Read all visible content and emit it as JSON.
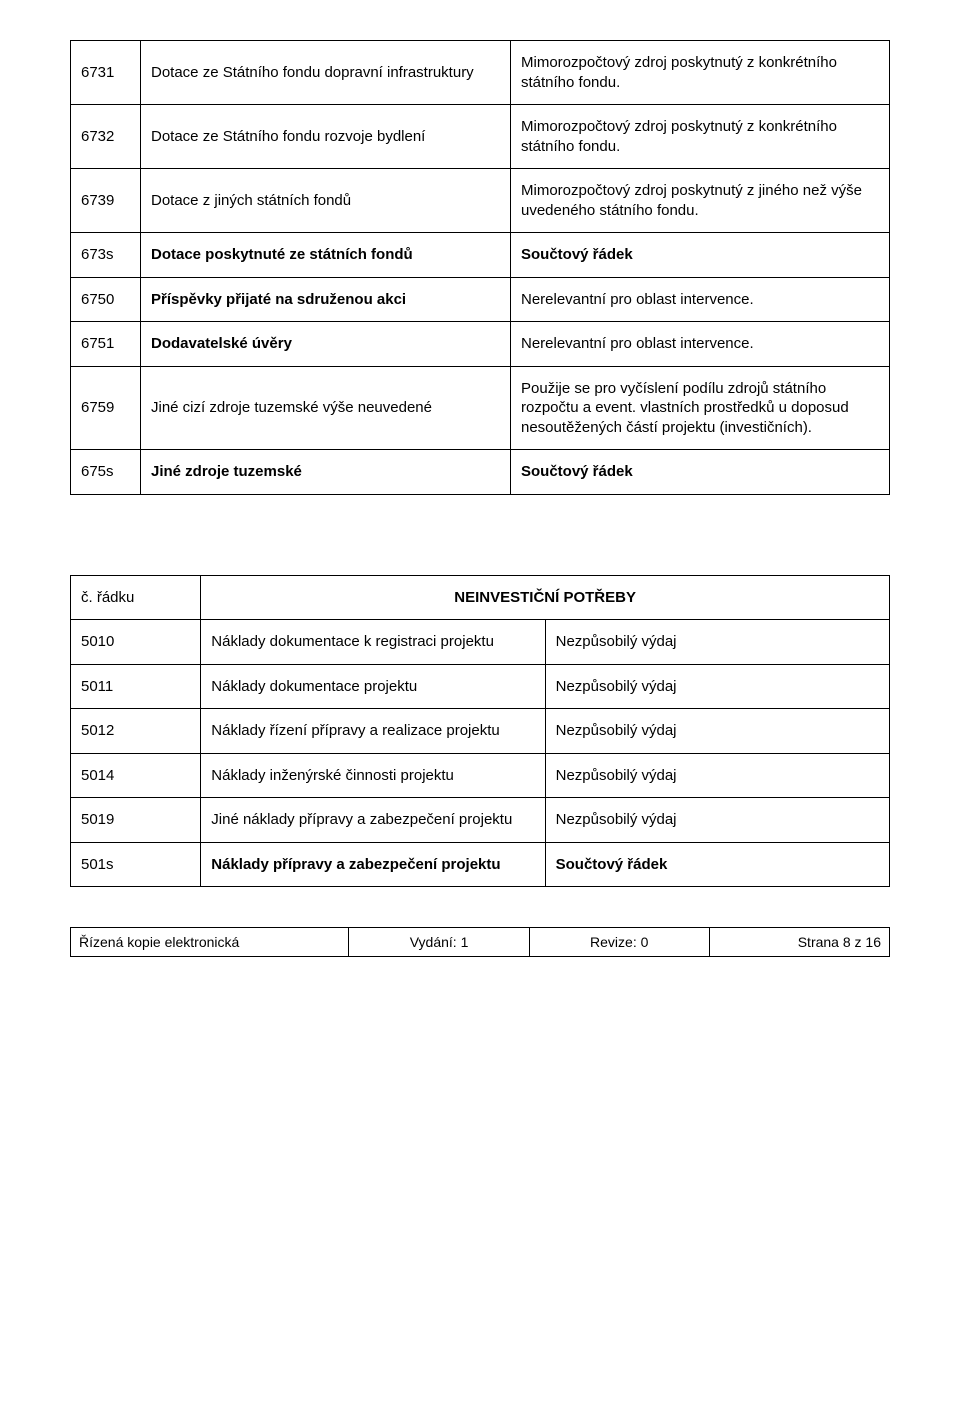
{
  "table1": {
    "rows": [
      {
        "code": "6731",
        "desc": "Dotace ze Státního fondu dopravní infrastruktury",
        "note": "Mimorozpočtový zdroj poskytnutý z konkrétního státního fondu.",
        "bold": false
      },
      {
        "code": "6732",
        "desc": "Dotace ze Státního fondu rozvoje bydlení",
        "note": "Mimorozpočtový zdroj poskytnutý z konkrétního státního fondu.",
        "bold": false
      },
      {
        "code": "6739",
        "desc": "Dotace z jiných státních fondů",
        "note": "Mimorozpočtový zdroj poskytnutý z jiného než výše uvedeného státního fondu.",
        "bold": false
      },
      {
        "code": "673s",
        "desc": "Dotace poskytnuté ze státních fondů",
        "note": "Součtový řádek",
        "bold": true
      },
      {
        "code": "6750",
        "desc": "Příspěvky přijaté na sdruženou akci",
        "note": "Nerelevantní pro oblast intervence.",
        "bold": true,
        "noteBold": false
      },
      {
        "code": "6751",
        "desc": "Dodavatelské úvěry",
        "note": "Nerelevantní pro oblast intervence.",
        "bold": true,
        "noteBold": false
      },
      {
        "code": "6759",
        "desc": "Jiné cizí zdroje tuzemské výše neuvedené",
        "note": "Použije se pro vyčíslení podílu zdrojů státního rozpočtu a event. vlastních prostředků u doposud nesoutěžených částí projektu (investičních).",
        "bold": false
      },
      {
        "code": "675s",
        "desc": "Jiné zdroje tuzemské",
        "note": "Součtový řádek",
        "bold": true
      }
    ]
  },
  "table2": {
    "header": {
      "code": "č. řádku",
      "title": "NEINVESTIČNÍ POTŘEBY"
    },
    "rows": [
      {
        "code": "5010",
        "desc": "Náklady dokumentace k registraci projektu",
        "note": "Nezpůsobilý výdaj",
        "tall": false
      },
      {
        "code": "5011",
        "desc": "Náklady dokumentace projektu",
        "note": "Nezpůsobilý výdaj",
        "tall": true
      },
      {
        "code": "5012",
        "desc": "Náklady řízení přípravy a realizace projektu",
        "note": "Nezpůsobilý výdaj",
        "tall": true
      },
      {
        "code": "5014",
        "desc": "Náklady inženýrské činnosti projektu",
        "note": "Nezpůsobilý výdaj",
        "tall": true
      },
      {
        "code": "5019",
        "desc": "Jiné náklady přípravy a zabezpečení projektu",
        "note": "Nezpůsobilý výdaj",
        "tall": false
      },
      {
        "code": "501s",
        "desc": "Náklady přípravy a zabezpečení projektu",
        "note": "Součtový řádek",
        "tall": true,
        "bold": true
      }
    ]
  },
  "footer": {
    "left": "Řízená kopie elektronická",
    "mid1": "Vydání: 1",
    "mid2": "Revize: 0",
    "right": "Strana 8 z 16"
  }
}
